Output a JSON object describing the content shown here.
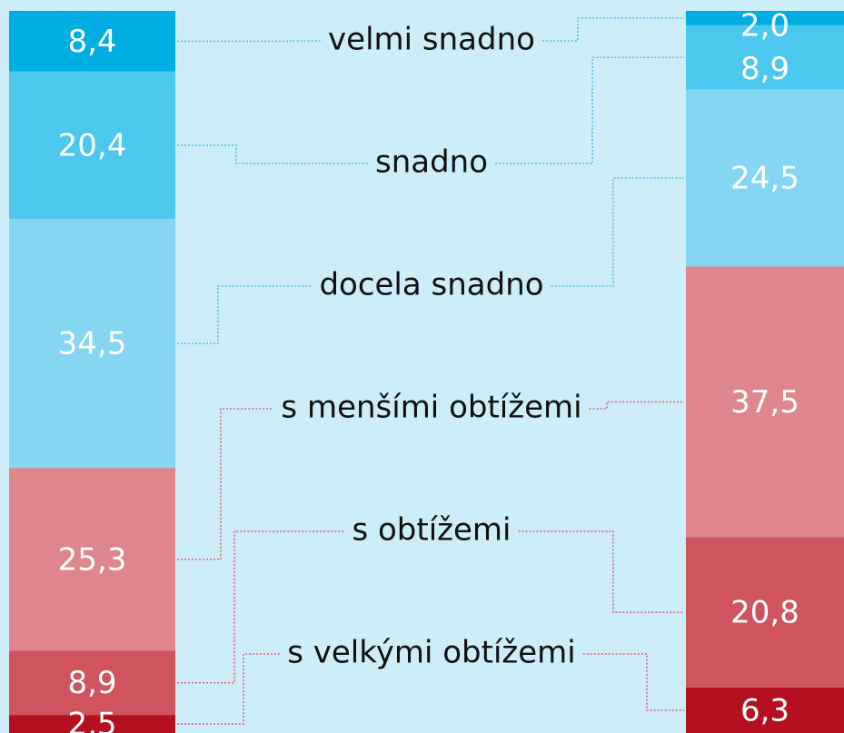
{
  "chart_data": {
    "type": "stacked-bar",
    "categories": [
      null,
      null
    ],
    "series": [
      {
        "name": "velmi snadno",
        "color": "#00aee3",
        "values": [
          8.4,
          2.0
        ],
        "value_labels": [
          "8,4",
          "2,0"
        ]
      },
      {
        "name": "snadno",
        "color": "#4cc7ee",
        "values": [
          20.4,
          8.9
        ],
        "value_labels": [
          "20,4",
          "8,9"
        ]
      },
      {
        "name": "docela snadno",
        "color": "#84d6f3",
        "values": [
          34.5,
          24.5
        ],
        "value_labels": [
          "34,5",
          "24,5"
        ]
      },
      {
        "name": "s menšími obtížemi",
        "color": "#de868c",
        "values": [
          25.3,
          37.5
        ],
        "value_labels": [
          "25,3",
          "37,5"
        ]
      },
      {
        "name": "s obtížemi",
        "color": "#cf545f",
        "values": [
          8.9,
          20.8
        ],
        "value_labels": [
          "8,9",
          "20,8"
        ]
      },
      {
        "name": "s velkými obtížemi",
        "color": "#b4101f",
        "values": [
          2.5,
          6.3
        ],
        "value_labels": [
          "2,5",
          "6,3"
        ]
      }
    ],
    "ylim": [
      0,
      100
    ]
  }
}
